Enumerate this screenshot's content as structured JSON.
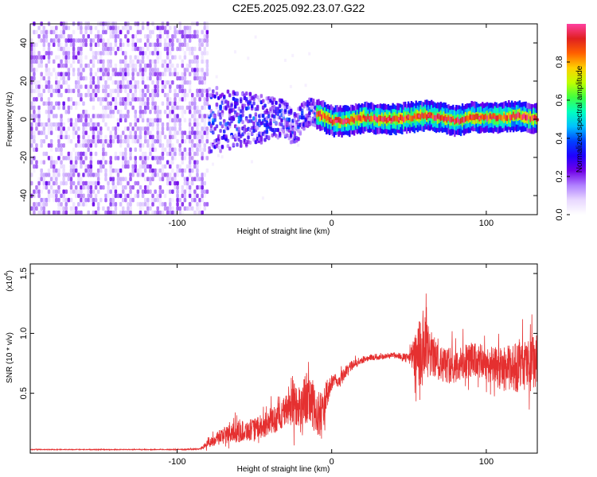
{
  "title": "C2E5.2025.092.23.07.G22",
  "colors": {
    "snr_line": "#e53030",
    "axis": "#000000",
    "colormap": [
      "#ffffff",
      "#e8d8ff",
      "#b080ff",
      "#7000e8",
      "#2000ff",
      "#0040ff",
      "#00c0ff",
      "#00ffc0",
      "#40ff40",
      "#c0ff00",
      "#ffd000",
      "#ff6000",
      "#e02020",
      "#ff40a0"
    ]
  },
  "colorbar": {
    "label": "Normalized spectral amplitude",
    "ticks": [
      0.0,
      0.2,
      0.4,
      0.6,
      0.8
    ],
    "tick_labels": [
      "0.0",
      "0.2",
      "0.4",
      "0.6",
      "0.8"
    ],
    "range": [
      0,
      1
    ]
  },
  "chart_data": [
    {
      "type": "heatmap",
      "xlabel": "Height of straight line (km)",
      "ylabel": "Frequency (Hz)",
      "xlim": [
        -195,
        133
      ],
      "ylim": [
        -50,
        50
      ],
      "xticks": [
        -100,
        0,
        100
      ],
      "xtick_labels": [
        "-100",
        "0",
        "100"
      ],
      "yticks": [
        -40,
        -20,
        0,
        20,
        40
      ],
      "ytick_labels": [
        "-40",
        "-20",
        "0",
        "20",
        "40"
      ],
      "regions": [
        {
          "x_range": [
            -195,
            -80
          ],
          "y_range": [
            -50,
            50
          ],
          "amplitude_range": [
            0.05,
            0.25
          ],
          "kind": "noise"
        },
        {
          "x_range": [
            -80,
            -10
          ],
          "y_center": 0,
          "y_halfwidth_start": 18,
          "y_halfwidth_end": 6,
          "amplitude_range": [
            0.1,
            0.45
          ],
          "kind": "mixed"
        },
        {
          "x_range": [
            -10,
            133
          ],
          "y_center": 0,
          "y_halfwidth": 3,
          "amplitude_range": [
            0.4,
            1.0
          ],
          "kind": "carrier"
        }
      ],
      "carrier_path": [
        [
          -10,
          3
        ],
        [
          0,
          -1
        ],
        [
          10,
          -1
        ],
        [
          20,
          1
        ],
        [
          30,
          0
        ],
        [
          40,
          0
        ],
        [
          50,
          1
        ],
        [
          60,
          2
        ],
        [
          70,
          1
        ],
        [
          80,
          -1
        ],
        [
          90,
          1
        ],
        [
          100,
          1
        ],
        [
          110,
          1
        ],
        [
          120,
          2
        ],
        [
          133,
          0
        ]
      ]
    },
    {
      "type": "line",
      "xlabel": "Height of straight line (km)",
      "ylabel": "SNR (10 * v/v)",
      "y_scale_label": "(x10",
      "y_scale_exp": "4",
      "xlim": [
        -195,
        133
      ],
      "ylim": [
        0,
        1.58
      ],
      "xticks": [
        -100,
        0,
        100
      ],
      "xtick_labels": [
        "-100",
        "0",
        "100"
      ],
      "yticks": [
        0.5,
        1.0,
        1.5
      ],
      "ytick_labels": [
        "0.5",
        "1.0",
        "1.5"
      ],
      "series": [
        {
          "x": [
            -195,
            -150,
            -100,
            -85,
            -80,
            -70,
            -60,
            -50,
            -40,
            -30,
            -25,
            -20,
            -15,
            -10,
            -5,
            0,
            5,
            10,
            15,
            20,
            25,
            30,
            40,
            50,
            57,
            60,
            65,
            70,
            80,
            90,
            100,
            110,
            120,
            133
          ],
          "y": [
            0.03,
            0.03,
            0.03,
            0.035,
            0.08,
            0.15,
            0.18,
            0.2,
            0.25,
            0.35,
            0.45,
            0.38,
            0.5,
            0.3,
            0.4,
            0.6,
            0.6,
            0.7,
            0.75,
            0.78,
            0.8,
            0.8,
            0.82,
            0.8,
            0.8,
            0.85,
            0.82,
            0.75,
            0.72,
            0.78,
            0.75,
            0.7,
            0.72,
            0.75
          ],
          "spread": [
            0.005,
            0.005,
            0.005,
            0.01,
            0.06,
            0.12,
            0.15,
            0.15,
            0.18,
            0.22,
            0.4,
            0.25,
            0.45,
            0.3,
            0.3,
            0.1,
            0.1,
            0.08,
            0.06,
            0.05,
            0.04,
            0.04,
            0.04,
            0.05,
            0.55,
            0.5,
            0.3,
            0.25,
            0.25,
            0.25,
            0.25,
            0.3,
            0.35,
            0.4
          ]
        }
      ]
    }
  ]
}
